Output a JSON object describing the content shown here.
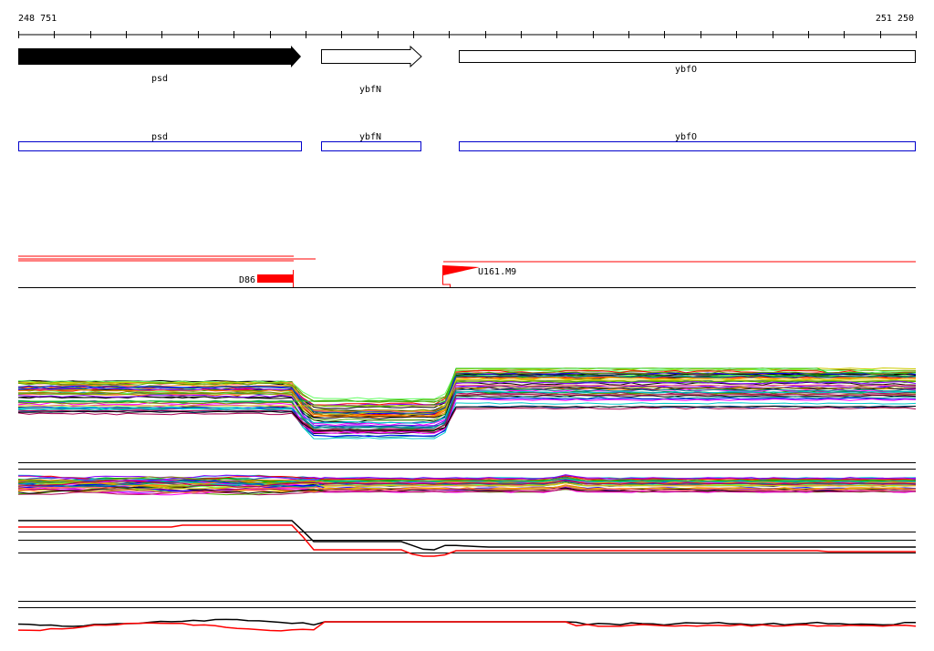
{
  "coordinates": {
    "start": "248 751",
    "end": "251 250"
  },
  "genes": [
    {
      "name": "psd",
      "style": "filled"
    },
    {
      "name": "ybfN",
      "style": "outline-arrow"
    },
    {
      "name": "ybfO",
      "style": "outline-box"
    }
  ],
  "annotations": [
    {
      "name": "psd"
    },
    {
      "name": "ybfN"
    },
    {
      "name": "ybfO"
    }
  ],
  "features": [
    {
      "label": "D86"
    },
    {
      "label": "U161.M9"
    }
  ],
  "colors": {
    "axis": "#000000",
    "gene_fill": "#000000",
    "annotation_box": "#0000cc",
    "feature": "#ff0000",
    "trace_palette": [
      "#ff0000",
      "#00aa00",
      "#0000ff",
      "#ff00ff",
      "#00cccc",
      "#cccc00",
      "#ff8800",
      "#8800ff",
      "#008888",
      "#888800",
      "#aa0055",
      "#55aa00",
      "#0055aa",
      "#000000",
      "#66ff66",
      "#ff6666"
    ]
  },
  "icons": [
    "arrow-right-filled-icon",
    "arrow-right-outline-icon"
  ]
}
